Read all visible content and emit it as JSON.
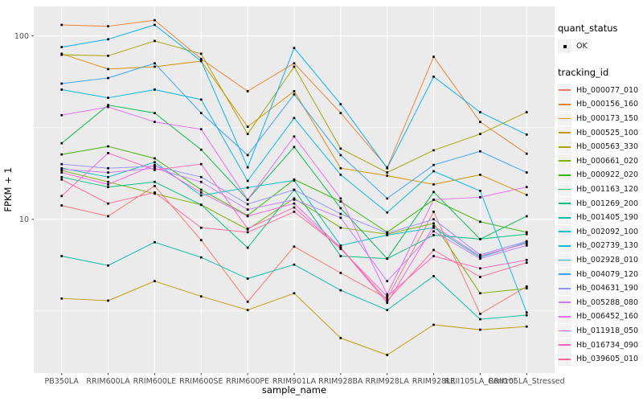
{
  "figure": {
    "x_axis_title": "sample_name",
    "y_axis_title": "FPKM + 1"
  },
  "legend": {
    "quant_status_title": "quant_status",
    "quant_status_items": [
      {
        "label": "OK",
        "marker": "black-point"
      }
    ],
    "tracking_id_title": "tracking_id"
  },
  "chart_data": {
    "type": "line",
    "title": "",
    "xlabel": "sample_name",
    "ylabel": "FPKM + 1",
    "y_scale": "log10",
    "ylim": [
      1.45,
      145
    ],
    "y_major_ticks": [
      10,
      100
    ],
    "y_minor_gridlines": [
      3.162,
      31.62
    ],
    "grid": true,
    "legend_position": "right",
    "point_marker": "black-square",
    "panel_color": "#EBEBEB",
    "gridline_color": "#FFFFFF",
    "tick_text_color": "#4D4D4D",
    "categories": [
      "PB350LA",
      "RRIM600LA",
      "RRIM600LE",
      "RRIM600SE",
      "RRIM600PE",
      "RRIM901LA",
      "RRIM928BA",
      "RRIM928LA",
      "RRIM928LE",
      "RRII105LA_Control",
      "RRII105LA_Stressed"
    ],
    "series": [
      {
        "name": "Hb_000077_010",
        "color": "#F8766D",
        "quant_status": "OK",
        "values": [
          11.9,
          10.4,
          15.2,
          7.7,
          3.55,
          7.1,
          5.1,
          3.7,
          11.0,
          3.05,
          4.3
        ]
      },
      {
        "name": "Hb_000156_160",
        "color": "#EA8331",
        "quant_status": "OK",
        "values": [
          115,
          113,
          122,
          75,
          50,
          71,
          38,
          19.2,
          77,
          34,
          22.8
        ]
      },
      {
        "name": "Hb_000173_150",
        "color": "#D89000",
        "quant_status": "OK",
        "values": [
          80,
          66,
          68,
          73,
          32,
          50,
          19,
          17.3,
          15.5,
          17.5,
          13.6
        ]
      },
      {
        "name": "Hb_000525_100",
        "color": "#C09B00",
        "quant_status": "OK",
        "values": [
          3.7,
          3.6,
          4.6,
          3.8,
          3.2,
          3.95,
          2.25,
          1.82,
          2.66,
          2.5,
          2.6
        ]
      },
      {
        "name": "Hb_000563_330",
        "color": "#A3A500",
        "quant_status": "OK",
        "values": [
          79,
          78,
          94,
          80,
          29.2,
          68,
          24.3,
          18.0,
          23.8,
          29.2,
          38.4
        ]
      },
      {
        "name": "Hb_000661_020",
        "color": "#7CAE00",
        "quant_status": "OK",
        "values": [
          18.5,
          16,
          13.8,
          12,
          8.8,
          13,
          9.0,
          8.3,
          9.5,
          3.95,
          4.2
        ]
      },
      {
        "name": "Hb_000922_020",
        "color": "#39B600",
        "quant_status": "OK",
        "values": [
          22.6,
          25,
          21.5,
          14.5,
          10.5,
          16.5,
          12.5,
          8.5,
          12.8,
          9.7,
          8.5
        ]
      },
      {
        "name": "Hb_001163_120",
        "color": "#00BB4E",
        "quant_status": "OK",
        "values": [
          26,
          42,
          38,
          24,
          12.8,
          24.8,
          11.5,
          6.1,
          14.1,
          7.8,
          10.4
        ]
      },
      {
        "name": "Hb_001269_200",
        "color": "#00BF7D",
        "quant_status": "OK",
        "values": [
          17,
          15,
          16,
          12,
          7.0,
          14.5,
          6.3,
          6.1,
          8.2,
          7.8,
          8.3
        ]
      },
      {
        "name": "Hb_001405_190",
        "color": "#00C1A3",
        "quant_status": "OK",
        "values": [
          6.3,
          5.6,
          7.5,
          6.2,
          4.75,
          5.66,
          4.1,
          3.2,
          4.9,
          2.85,
          3.0
        ]
      },
      {
        "name": "Hb_002092_100",
        "color": "#00BFC4",
        "quant_status": "OK",
        "values": [
          19,
          17,
          20.5,
          13.5,
          14.9,
          16.3,
          7.2,
          8.2,
          9.0,
          6.2,
          7.5
        ]
      },
      {
        "name": "Hb_002739_130",
        "color": "#00BAE0",
        "quant_status": "OK",
        "values": [
          51,
          46,
          51,
          45,
          16.2,
          35.7,
          17.5,
          10.9,
          18.3,
          14.3,
          3.1
        ]
      },
      {
        "name": "Hb_002928_010",
        "color": "#00B0F6",
        "quant_status": "OK",
        "values": [
          87,
          96,
          115,
          73,
          19.2,
          86,
          42.5,
          19,
          60,
          38.4,
          29
        ]
      },
      {
        "name": "Hb_004079_120",
        "color": "#35A2FF",
        "quant_status": "OK",
        "values": [
          55,
          59,
          71,
          38,
          22.4,
          48,
          22.4,
          13,
          19.8,
          23.5,
          18
        ]
      },
      {
        "name": "Hb_004631_190",
        "color": "#9590FF",
        "quant_status": "OK",
        "values": [
          20,
          19,
          19.5,
          17,
          12.1,
          14.5,
          10.7,
          8.4,
          10.0,
          6.4,
          7.6
        ]
      },
      {
        "name": "Hb_005288_080",
        "color": "#C77CFF",
        "quant_status": "OK",
        "values": [
          18.8,
          18,
          19.0,
          16,
          11.3,
          12.8,
          10.2,
          4.6,
          8.6,
          6.1,
          7.2
        ]
      },
      {
        "name": "Hb_006452_160",
        "color": "#E76BF3",
        "quant_status": "OK",
        "values": [
          37,
          41,
          34,
          31,
          12.8,
          28.3,
          13.0,
          3.9,
          12.8,
          13.2,
          15
        ]
      },
      {
        "name": "Hb_011918_050",
        "color": "#FA62DB",
        "quant_status": "OK",
        "values": [
          18,
          15.5,
          19.8,
          14,
          10.4,
          12.2,
          7.0,
          3.5,
          9.2,
          6.3,
          7.4
        ]
      },
      {
        "name": "Hb_016734_090",
        "color": "#FF62BC",
        "quant_status": "OK",
        "values": [
          13.4,
          23,
          18.6,
          20,
          8.9,
          11.6,
          6.9,
          3.8,
          6.3,
          5.4,
          6.0
        ]
      },
      {
        "name": "Hb_039605_010",
        "color": "#FF6A98",
        "quant_status": "OK",
        "values": [
          16.5,
          12.2,
          14.0,
          9.0,
          8.5,
          11.0,
          7.0,
          3.6,
          6.8,
          4.85,
          5.8
        ]
      }
    ]
  }
}
